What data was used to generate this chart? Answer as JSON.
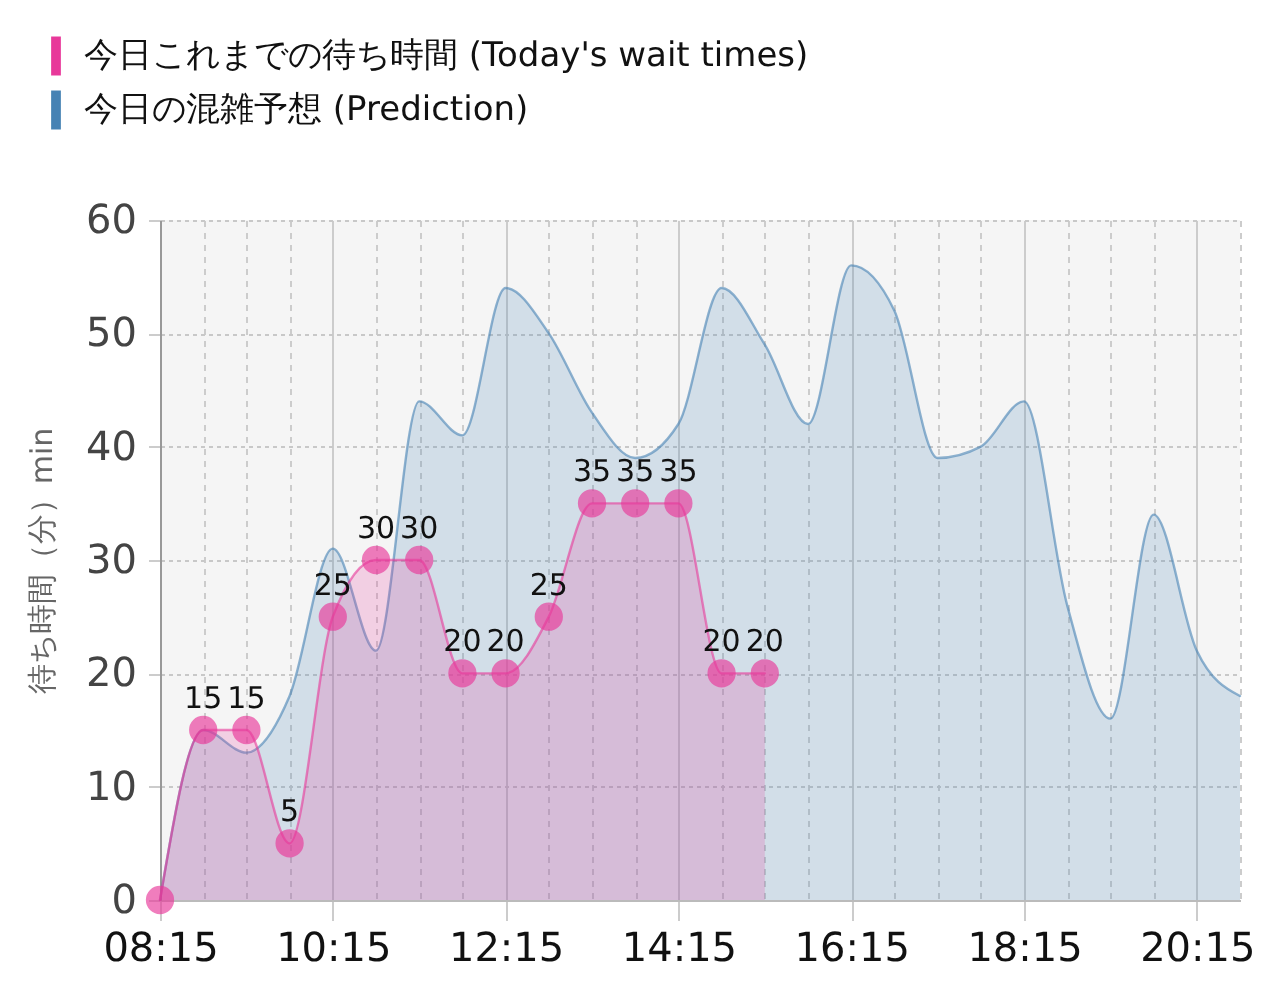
{
  "chart_data": {
    "type": "area",
    "ylabel": "待ち時間（分）min",
    "xlim": [
      8.25,
      20.75
    ],
    "xticks": [
      {
        "value": 8.25,
        "label": "08:15"
      },
      {
        "value": 8.75,
        "label": null
      },
      {
        "value": 9.25,
        "label": null
      },
      {
        "value": 9.75,
        "label": null
      },
      {
        "value": 10.25,
        "label": "10:15"
      },
      {
        "value": 10.75,
        "label": null
      },
      {
        "value": 11.25,
        "label": null
      },
      {
        "value": 11.75,
        "label": null
      },
      {
        "value": 12.25,
        "label": "12:15"
      },
      {
        "value": 12.75,
        "label": null
      },
      {
        "value": 13.25,
        "label": null
      },
      {
        "value": 13.75,
        "label": null
      },
      {
        "value": 14.25,
        "label": "14:15"
      },
      {
        "value": 14.75,
        "label": null
      },
      {
        "value": 15.25,
        "label": null
      },
      {
        "value": 15.75,
        "label": null
      },
      {
        "value": 16.25,
        "label": "16:15"
      },
      {
        "value": 16.75,
        "label": null
      },
      {
        "value": 17.25,
        "label": null
      },
      {
        "value": 17.75,
        "label": null
      },
      {
        "value": 18.25,
        "label": "18:15"
      },
      {
        "value": 18.75,
        "label": null
      },
      {
        "value": 19.25,
        "label": null
      },
      {
        "value": 19.75,
        "label": null
      },
      {
        "value": 20.25,
        "label": "20:15"
      },
      {
        "value": 20.75,
        "label": null
      }
    ],
    "ylim": [
      0,
      60
    ],
    "yticks": [
      0,
      10,
      20,
      30,
      40,
      50,
      60
    ],
    "grid": true,
    "legend": "top left",
    "series": [
      {
        "name": "今日これまでの待ち時間 (Today's wait times)",
        "color": "#e8389a",
        "marker": "circle",
        "x": [
          8.25,
          8.75,
          9.25,
          9.75,
          10.25,
          10.75,
          11.25,
          11.75,
          12.25,
          12.75,
          13.25,
          13.75,
          14.25,
          14.75,
          15.25
        ],
        "values": [
          0,
          15,
          15,
          5,
          25,
          30,
          30,
          20,
          20,
          25,
          35,
          35,
          35,
          20,
          20
        ],
        "value_labels": [
          null,
          "15",
          "15",
          "5",
          "25",
          "30",
          "30",
          "20",
          "20",
          "25",
          "35",
          "35",
          "35",
          "20",
          "20"
        ]
      },
      {
        "name": "今日の混雑予想 (Prediction)",
        "color": "#4682b4",
        "x": [
          8.25,
          8.75,
          9.25,
          9.75,
          10.25,
          10.75,
          11.25,
          11.75,
          12.25,
          12.75,
          13.25,
          13.75,
          14.25,
          14.75,
          15.25,
          15.75,
          16.25,
          16.75,
          17.25,
          17.75,
          18.25,
          18.75,
          19.25,
          19.75,
          20.25,
          20.75
        ],
        "values": [
          0,
          15,
          13,
          18,
          31,
          22,
          44,
          41,
          54,
          50,
          43,
          39,
          42,
          54,
          49,
          42,
          56,
          52,
          39,
          40,
          44,
          26,
          16,
          34,
          22,
          18
        ]
      }
    ]
  }
}
